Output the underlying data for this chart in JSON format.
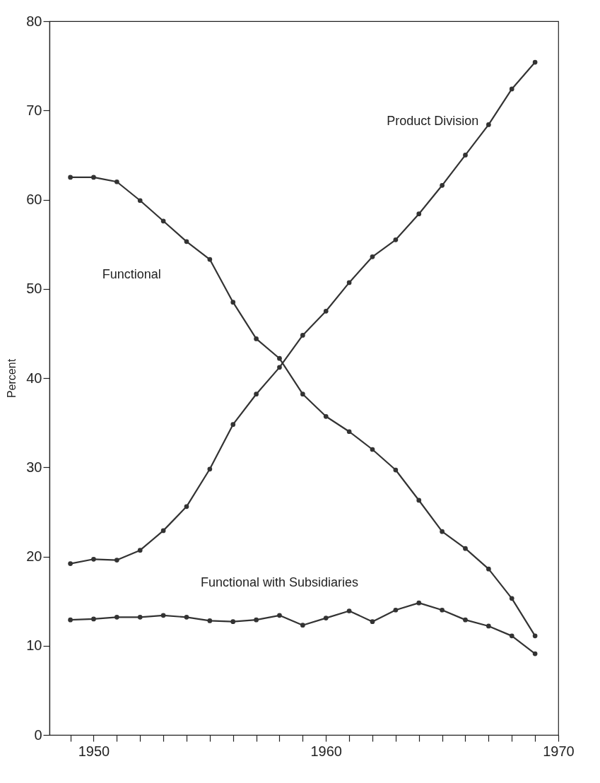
{
  "chart_data": {
    "type": "line",
    "ylabel": "Percent",
    "x": [
      1949,
      1950,
      1951,
      1952,
      1953,
      1954,
      1955,
      1956,
      1957,
      1958,
      1959,
      1960,
      1961,
      1962,
      1963,
      1964,
      1965,
      1966,
      1967,
      1968,
      1969
    ],
    "series": [
      {
        "name": "Product Division",
        "color": "#333333",
        "values": [
          19.2,
          19.7,
          19.6,
          20.7,
          22.9,
          25.6,
          29.8,
          34.8,
          38.2,
          41.2,
          44.8,
          47.5,
          50.7,
          53.6,
          55.5,
          58.4,
          61.6,
          65.0,
          68.4,
          72.4,
          75.4
        ]
      },
      {
        "name": "Functional",
        "color": "#333333",
        "values": [
          62.5,
          62.5,
          62.0,
          59.9,
          57.6,
          55.3,
          53.3,
          48.5,
          44.4,
          42.2,
          38.2,
          35.7,
          34.0,
          32.0,
          29.7,
          26.3,
          22.8,
          20.9,
          18.6,
          15.3,
          11.1
        ]
      },
      {
        "name": "Functional with Subsidiaries",
        "color": "#333333",
        "values": [
          12.9,
          13.0,
          13.2,
          13.2,
          13.4,
          13.2,
          12.8,
          12.7,
          12.9,
          13.4,
          12.3,
          13.1,
          13.9,
          12.7,
          14.0,
          14.8,
          14.0,
          12.9,
          12.2,
          11.1,
          9.1
        ]
      }
    ],
    "xlim": [
      1948.1,
      1970
    ],
    "xticks": [
      {
        "value": 1949,
        "label": null
      },
      1950,
      {
        "value": 1951,
        "label": null
      },
      {
        "value": 1952,
        "label": null
      },
      {
        "value": 1953,
        "label": null
      },
      {
        "value": 1954,
        "label": null
      },
      {
        "value": 1955,
        "label": null
      },
      {
        "value": 1956,
        "label": null
      },
      {
        "value": 1957,
        "label": null
      },
      {
        "value": 1958,
        "label": null
      },
      {
        "value": 1959,
        "label": null
      },
      1960,
      {
        "value": 1961,
        "label": null
      },
      {
        "value": 1962,
        "label": null
      },
      {
        "value": 1963,
        "label": null
      },
      {
        "value": 1964,
        "label": null
      },
      {
        "value": 1965,
        "label": null
      },
      {
        "value": 1966,
        "label": null
      },
      {
        "value": 1967,
        "label": null
      },
      {
        "value": 1968,
        "label": null
      },
      {
        "value": 1969,
        "label": null
      },
      1970
    ],
    "ylim": [
      0,
      80
    ],
    "yticks": [
      0,
      10,
      20,
      30,
      40,
      50,
      60,
      70,
      80
    ],
    "grid": false,
    "legend": false,
    "marker": "circle",
    "line_style": "solid"
  }
}
